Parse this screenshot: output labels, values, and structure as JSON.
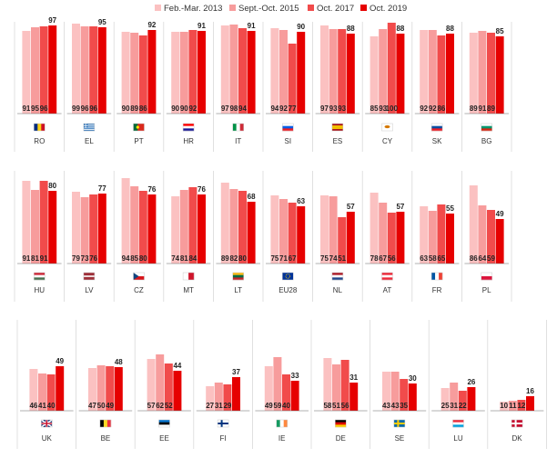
{
  "chart_data": {
    "type": "bar",
    "ylim": [
      0,
      100
    ],
    "series": [
      {
        "name": "Feb.-Mar. 2013",
        "color": "#fbc1c1"
      },
      {
        "name": "Sept.-Oct. 2015",
        "color": "#f79c9c"
      },
      {
        "name": "Oct. 2017",
        "color": "#f14b4b"
      },
      {
        "name": "Oct. 2019",
        "color": "#e60000"
      }
    ],
    "rows": [
      [
        {
          "country": "RO",
          "values": [
            91,
            95,
            96,
            97
          ],
          "labels": [
            "91",
            "95",
            "96",
            "97"
          ],
          "top_label": "97"
        },
        {
          "country": "EL",
          "values": [
            99,
            96,
            96,
            95
          ],
          "labels": [
            "99",
            "96",
            "96",
            "95"
          ],
          "top_label": "95"
        },
        {
          "country": "PT",
          "values": [
            90,
            89,
            86,
            92
          ],
          "labels": [
            "90",
            "89",
            "86",
            "92"
          ],
          "top_label": "92"
        },
        {
          "country": "HR",
          "values": [
            90,
            90,
            92,
            91
          ],
          "labels": [
            "90",
            "90",
            "92",
            "91"
          ],
          "top_label": "91"
        },
        {
          "country": "IT",
          "values": [
            97,
            98,
            94,
            91
          ],
          "labels": [
            "97",
            "98",
            "94",
            "91"
          ],
          "top_label": "91"
        },
        {
          "country": "SI",
          "values": [
            94,
            92,
            77,
            90
          ],
          "labels": [
            "94",
            "92",
            "77",
            "90"
          ],
          "top_label": "90"
        },
        {
          "country": "ES",
          "values": [
            97,
            93,
            93,
            88
          ],
          "labels": [
            "97",
            "93",
            "93",
            "88"
          ],
          "top_label": "88"
        },
        {
          "country": "CY",
          "values": [
            85,
            93,
            100,
            88
          ],
          "labels": [
            "85",
            "93",
            "100",
            "88"
          ],
          "top_label": "88"
        },
        {
          "country": "SK",
          "values": [
            92,
            92,
            86,
            88
          ],
          "labels": [
            "92",
            "92",
            "86",
            "88"
          ],
          "top_label": "88"
        },
        {
          "country": "BG",
          "values": [
            89,
            91,
            89,
            85
          ],
          "labels": [
            "89",
            "91",
            "89",
            "85"
          ],
          "top_label": "85"
        }
      ],
      [
        {
          "country": "HU",
          "values": [
            91,
            81,
            91,
            80
          ],
          "labels": [
            "91",
            "81",
            "91",
            "80"
          ],
          "top_label": "80"
        },
        {
          "country": "LV",
          "values": [
            79,
            73,
            76,
            77
          ],
          "labels": [
            "79",
            "73",
            "76",
            "77"
          ],
          "top_label": "77"
        },
        {
          "country": "CZ",
          "values": [
            94,
            85,
            80,
            76
          ],
          "labels": [
            "94",
            "85",
            "80",
            "76"
          ],
          "top_label": "76"
        },
        {
          "country": "MT",
          "values": [
            74,
            81,
            84,
            76
          ],
          "labels": [
            "74",
            "81",
            "84",
            "76"
          ],
          "top_label": "76"
        },
        {
          "country": "LT",
          "values": [
            89,
            82,
            80,
            68
          ],
          "labels": [
            "89",
            "82",
            "80",
            "68"
          ],
          "top_label": "68"
        },
        {
          "country": "EU28",
          "values": [
            75,
            71,
            67,
            63
          ],
          "labels": [
            "75",
            "71",
            "67",
            "63"
          ],
          "top_label": "63"
        },
        {
          "country": "NL",
          "values": [
            75,
            74,
            51,
            57
          ],
          "labels": [
            "75",
            "74",
            "51",
            "57"
          ],
          "top_label": "57"
        },
        {
          "country": "AT",
          "values": [
            78,
            67,
            56,
            57
          ],
          "labels": [
            "78",
            "67",
            "56",
            "57"
          ],
          "top_label": "57"
        },
        {
          "country": "FR",
          "values": [
            63,
            58,
            65,
            55
          ],
          "labels": [
            "63",
            "58",
            "65",
            "55"
          ],
          "top_label": "55"
        },
        {
          "country": "PL",
          "values": [
            86,
            64,
            59,
            49
          ],
          "labels": [
            "86",
            "64",
            "59",
            "49"
          ],
          "top_label": "49"
        }
      ],
      [
        {
          "country": "UK",
          "values": [
            46,
            41,
            40,
            49
          ],
          "labels": [
            "46",
            "41",
            "40",
            "49"
          ],
          "top_label": "49"
        },
        {
          "country": "BE",
          "values": [
            47,
            50,
            49,
            48
          ],
          "labels": [
            "47",
            "50",
            "49",
            "48"
          ],
          "top_label": "48"
        },
        {
          "country": "EE",
          "values": [
            57,
            62,
            52,
            44
          ],
          "labels": [
            "57",
            "62",
            "52",
            "44"
          ],
          "top_label": "44"
        },
        {
          "country": "FI",
          "values": [
            27,
            31,
            29,
            37
          ],
          "labels": [
            "27",
            "31",
            "29",
            "37"
          ],
          "top_label": "37"
        },
        {
          "country": "IE",
          "values": [
            49,
            59,
            40,
            33
          ],
          "labels": [
            "49",
            "59",
            "40",
            "33"
          ],
          "top_label": "33"
        },
        {
          "country": "DE",
          "values": [
            58,
            51,
            56,
            31
          ],
          "labels": [
            "58",
            "51",
            "56",
            "31"
          ],
          "top_label": "31"
        },
        {
          "country": "SE",
          "values": [
            43,
            43,
            35,
            30
          ],
          "labels": [
            "43",
            "43",
            "35",
            "30"
          ],
          "top_label": "30"
        },
        {
          "country": "LU",
          "values": [
            25,
            31,
            22,
            26
          ],
          "labels": [
            "25",
            "31",
            "22",
            "26"
          ],
          "top_label": "26"
        },
        {
          "country": "DK",
          "values": [
            10,
            11,
            12,
            16
          ],
          "labels": [
            "10",
            "11",
            "12",
            "16"
          ],
          "top_label": "16"
        }
      ]
    ],
    "flags": {
      "RO": [
        "v",
        "#002b7f",
        "#fcd116",
        "#ce1126"
      ],
      "EL": [
        "greece"
      ],
      "PT": [
        "pt"
      ],
      "HR": [
        "h",
        "#ff0000",
        "#ffffff",
        "#171796"
      ],
      "IT": [
        "v",
        "#009246",
        "#ffffff",
        "#ce2b37"
      ],
      "SI": [
        "h",
        "#ffffff",
        "#005ce6",
        "#ed1c24"
      ],
      "ES": [
        "es"
      ],
      "CY": [
        "solid",
        "#ffffff"
      ],
      "SK": [
        "h",
        "#ffffff",
        "#0b4ea2",
        "#ee1c25"
      ],
      "BG": [
        "h",
        "#ffffff",
        "#00966e",
        "#d62612"
      ],
      "HU": [
        "h",
        "#ce2939",
        "#ffffff",
        "#477050"
      ],
      "LV": [
        "lv"
      ],
      "CZ": [
        "cz"
      ],
      "MT": [
        "v",
        "#ffffff",
        "#cf142b"
      ],
      "LT": [
        "h",
        "#fdb913",
        "#006a44",
        "#c1272d"
      ],
      "EU28": [
        "solid",
        "#003399"
      ],
      "NL": [
        "h",
        "#ae1c28",
        "#ffffff",
        "#21468b"
      ],
      "AT": [
        "h",
        "#ed2939",
        "#ffffff",
        "#ed2939"
      ],
      "FR": [
        "v",
        "#0055a4",
        "#ffffff",
        "#ef4135"
      ],
      "PL": [
        "h",
        "#ffffff",
        "#dc143c"
      ],
      "UK": [
        "uk"
      ],
      "BE": [
        "v",
        "#000000",
        "#fdda24",
        "#ef3340"
      ],
      "EE": [
        "h",
        "#0072ce",
        "#000000",
        "#ffffff"
      ],
      "FI": [
        "nordic",
        "#ffffff",
        "#003580"
      ],
      "IE": [
        "v",
        "#169b62",
        "#ffffff",
        "#ff883e"
      ],
      "DE": [
        "h",
        "#000000",
        "#dd0000",
        "#ffce00"
      ],
      "SE": [
        "nordic",
        "#006aa7",
        "#fecc00"
      ],
      "LU": [
        "h",
        "#ed2939",
        "#ffffff",
        "#00a1de"
      ],
      "DK": [
        "nordic",
        "#c60c30",
        "#ffffff"
      ]
    }
  }
}
